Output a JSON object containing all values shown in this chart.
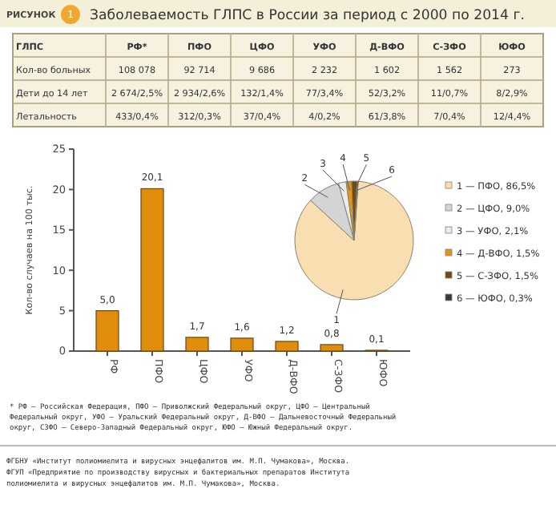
{
  "chart_data": [
    {
      "type": "other",
      "title": "Заболеваемость ГЛПС в России за период с 2000 по 2014 г.",
      "annotations": [
        "РИСУНОК",
        "1"
      ],
      "categories": [
        "ГЛПС",
        "РФ*",
        "ПФО",
        "ЦФО",
        "УФО",
        "Д-ВФО",
        "С-ЗФО",
        "ЮФО"
      ],
      "cell_labels": [
        [
          "Кол-во больных",
          "108 078",
          "92 714",
          "9 686",
          "2 232",
          "1 602",
          "1 562",
          "273"
        ],
        [
          "Дети до 14 лет",
          "2 674/2,5%",
          "2 934/2,6%",
          "132/1,4%",
          "77/3,4%",
          "52/3,2%",
          "11/0,7%",
          "8/2,9%"
        ],
        [
          "Летальность",
          "433/0,4%",
          "312/0,3%",
          "37/0,4%",
          "4/0,2%",
          "61/3,8%",
          "7/0,4%",
          "12/4,4%"
        ]
      ]
    },
    {
      "type": "bar",
      "ylabel": "Кол-во случаев на 100 тыс.",
      "categories": [
        "РФ",
        "ПФО",
        "ЦФО",
        "УФО",
        "Д-ВФО",
        "С-ЗФО",
        "ЮФО"
      ],
      "values": [
        5.0,
        20.1,
        1.7,
        1.6,
        1.2,
        0.8,
        0.1
      ],
      "value_labels": [
        "5,0",
        "20,1",
        "1,7",
        "1,6",
        "1,2",
        "0,8",
        "0,1"
      ],
      "color": "#e08c0c",
      "ylim": [
        0,
        25
      ],
      "yticks": [
        0,
        5,
        10,
        15,
        20,
        25
      ],
      "annotations": [
        "* РФ – Российская Федерация, ПФО – Приволжский Федеральный округ, ЦФО – Центральный",
        "Федеральный округ, УФО – Уральский Федеральный округ, Д-ВФО – Дальневосточный Федеральный",
        "округ, СЗФО – Северо-Западный Федеральный округ, ЮФО – Южный Федеральный округ.",
        "ФГБНУ «Институт полиомиелита и вирусных энцефалитов им. М.П. Чумакова», Москва.",
        "ФГУП «Предприятие по производству вирусных и бактериальных препаратов Института",
        "полиомиелита и вирусных энцефалитов им. М.П. Чумакова», Москва."
      ]
    },
    {
      "type": "pie",
      "categories": [
        "1 — ПФО, 86,5%",
        "2 — ЦФО, 9,0%",
        "3 — УФО, 2,1%",
        "4 — Д-ВФО, 1,5%",
        "5 — С-ЗФО, 1,5%",
        "6 — ЮФО, 0,3%"
      ],
      "values": [
        86.5,
        9.0,
        2.1,
        1.5,
        1.5,
        0.3
      ],
      "colors": [
        "#f8deb0",
        "#d4d4d4",
        "#ebebeb",
        "#e0961c",
        "#6e4c12",
        "#3a3a3a"
      ],
      "annotations": [
        "1",
        "2",
        "3",
        "4",
        "5",
        "6"
      ],
      "legend": "right"
    }
  ]
}
